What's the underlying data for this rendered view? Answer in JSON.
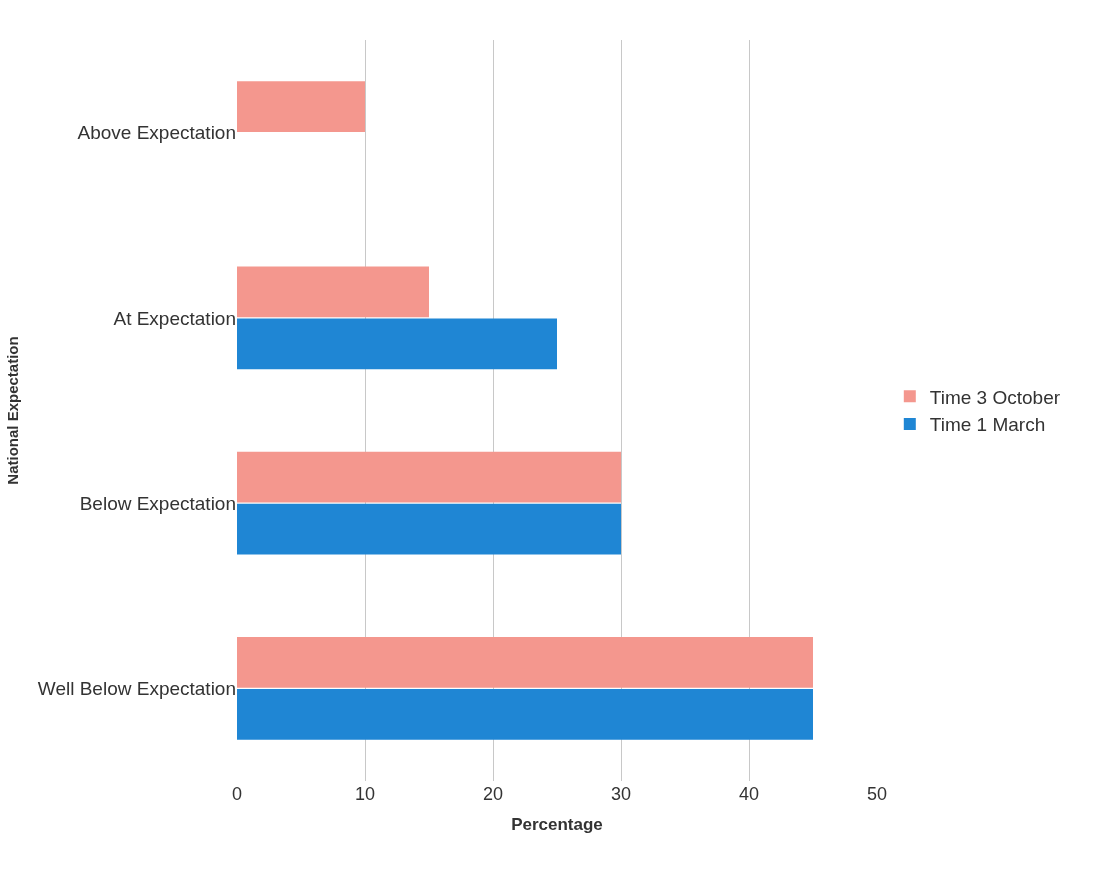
{
  "chart_data": {
    "type": "bar",
    "orientation": "horizontal",
    "xlabel": "Percentage",
    "ylabel": "National Expectation",
    "categories": [
      "Above Expectation",
      "At Expectation",
      "Below Expectation",
      "Well Below Expectation"
    ],
    "series": [
      {
        "name": "Time 3 October",
        "color": "#f4978e",
        "values": [
          10,
          15,
          30,
          45
        ]
      },
      {
        "name": "Time 1 March",
        "color": "#1f86d4",
        "values": [
          0,
          25,
          30,
          45
        ]
      }
    ],
    "xlim": [
      0,
      50
    ],
    "xticks": [
      0,
      10,
      20,
      30,
      40,
      50
    ],
    "grid": "x",
    "legend": "right"
  }
}
